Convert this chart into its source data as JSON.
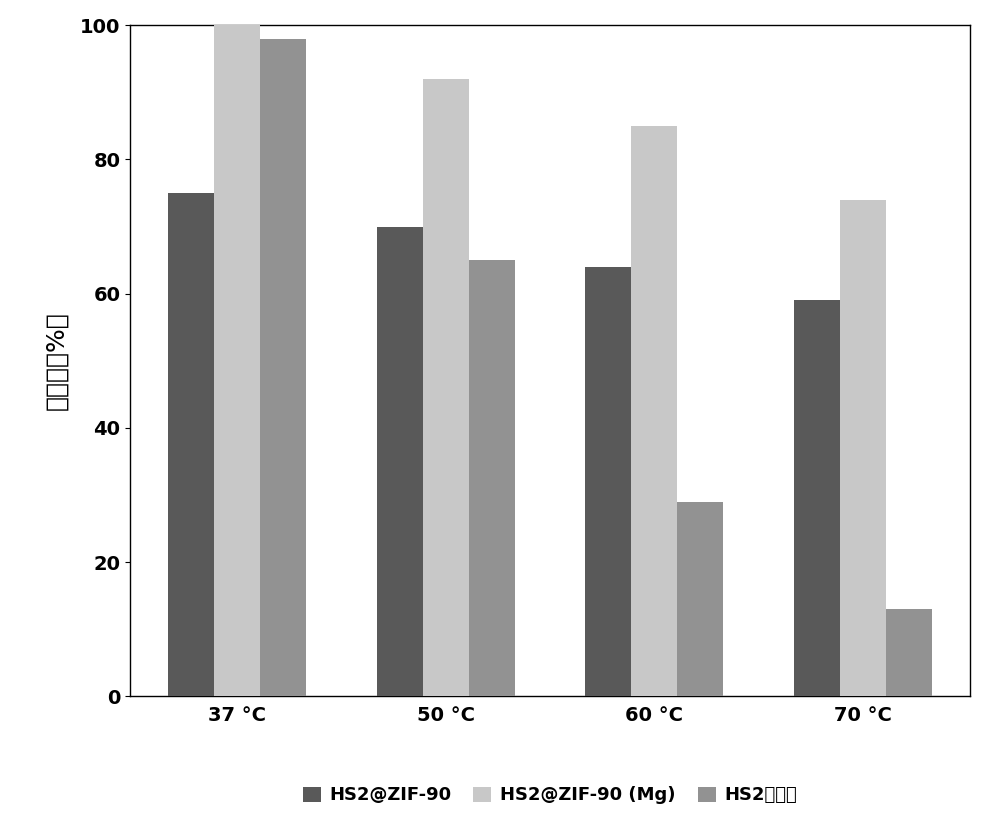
{
  "categories": [
    "37 °C",
    "50 °C",
    "60 °C",
    "70 °C"
  ],
  "series": [
    {
      "name": "HS2@ZIF-90",
      "values": [
        75,
        70,
        64,
        59
      ],
      "color": "#595959"
    },
    {
      "name": "HS2@ZIF-90 (Mg)",
      "values": [
        100,
        92,
        85,
        74
      ],
      "color": "#c8c8c8"
    },
    {
      "name": "HS2游离酶",
      "values": [
        98,
        65,
        29,
        13
      ],
      "color": "#929292"
    }
  ],
  "ylabel": "转化率（%）",
  "ylim": [
    0,
    100
  ],
  "yticks": [
    0,
    20,
    40,
    60,
    80,
    100
  ],
  "bar_width": 0.22,
  "legend_fontsize": 13,
  "ylabel_fontsize": 18,
  "tick_fontsize": 14,
  "background_color": "#ffffff",
  "figure_bg": "#ffffff",
  "box_facecolor": "#ffffff"
}
